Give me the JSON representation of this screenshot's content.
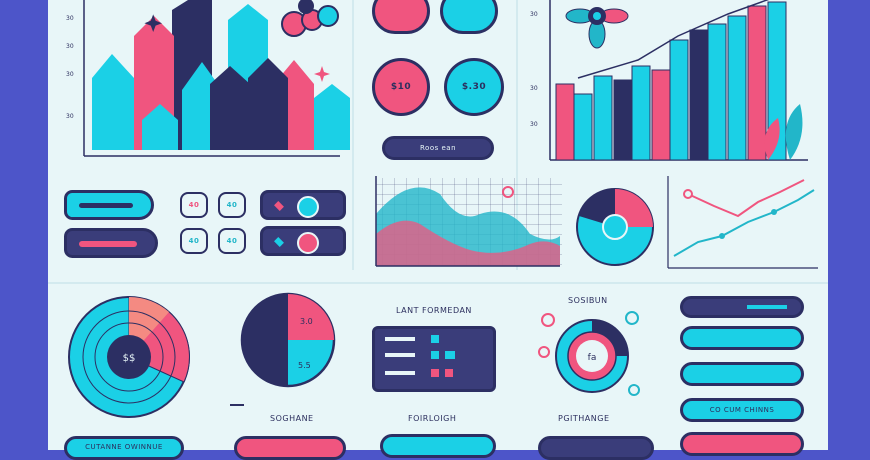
{
  "colors": {
    "navy": "#2c2f63",
    "cyan": "#1bd0e6",
    "pink": "#f0557f",
    "teal": "#22b6c9",
    "bg": "#e8f6f8",
    "frame": "#4d55c9",
    "salmon": "#f48a82"
  },
  "top_left_chart": {
    "y_ticks": [
      "30",
      "30",
      "30",
      "30"
    ],
    "x_ticks": [
      "",
      "",
      "",
      "",
      "",
      ""
    ]
  },
  "circle_buttons": {
    "pink_value": "$10",
    "cyan_value": "$.30"
  },
  "pill_button_label": "Roos ean",
  "toggle_values": {
    "pink_top": "40",
    "cyan_top": "40",
    "cyan_bottom": "40",
    "cyan_bottom2": "40"
  },
  "bar_chart_right": {
    "y_ticks": [
      "30",
      "30",
      "30"
    ],
    "x_ticks": [
      "",
      "",
      "",
      "",
      "",
      "",
      "",
      "",
      "",
      "",
      ""
    ]
  },
  "donut_center": "$$",
  "pie_labels": {
    "top": "3.0",
    "bottom": "5.5"
  },
  "pie_caption": "SOGHANE",
  "table_title": "LANT FORMEDAN",
  "table_caption": "FOIRLOIGH",
  "radial_title": "SOSIBUN",
  "radial_caption": "PGITHANGE",
  "radial_center": "fa",
  "right_buttons": [
    "",
    "",
    "",
    "CO CUM CHINNS",
    ""
  ],
  "bottom_buttons": [
    "CUTANNE OWINNUE",
    "",
    "",
    "",
    ""
  ]
}
